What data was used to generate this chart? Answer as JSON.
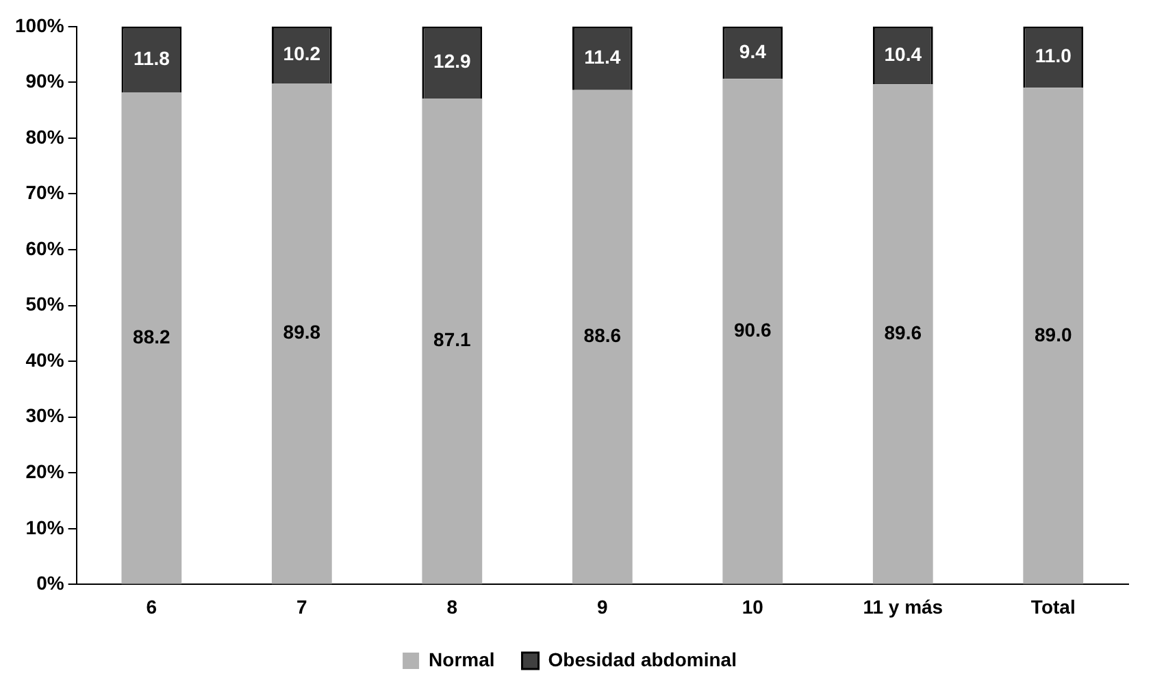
{
  "chart_data": {
    "type": "bar",
    "stacked": true,
    "categories": [
      "6",
      "7",
      "8",
      "9",
      "10",
      "11 y más",
      "Total"
    ],
    "series": [
      {
        "name": "Normal",
        "color": "#b3b3b3",
        "values": [
          88.2,
          89.8,
          87.1,
          88.6,
          90.6,
          89.6,
          89.0
        ],
        "value_labels": [
          "88.2",
          "89.8",
          "87.1",
          "88.6",
          "90.6",
          "89.6",
          "89.0"
        ]
      },
      {
        "name": "Obesidad abdominal",
        "color": "#404040",
        "values": [
          11.8,
          10.2,
          12.9,
          11.4,
          9.4,
          10.4,
          11.0
        ],
        "value_labels": [
          "11.8",
          "10.2",
          "12.9",
          "11.4",
          "9.4",
          "10.4",
          "11.0"
        ]
      }
    ],
    "ylim": [
      0,
      100
    ],
    "yticks": [
      {
        "value": 0,
        "label": "0%"
      },
      {
        "value": 10,
        "label": "10%"
      },
      {
        "value": 20,
        "label": "20%"
      },
      {
        "value": 30,
        "label": "30%"
      },
      {
        "value": 40,
        "label": "40%"
      },
      {
        "value": 50,
        "label": "50%"
      },
      {
        "value": 60,
        "label": "60%"
      },
      {
        "value": 70,
        "label": "70%"
      },
      {
        "value": 80,
        "label": "80%"
      },
      {
        "value": 90,
        "label": "90%"
      },
      {
        "value": 100,
        "label": "100%"
      }
    ],
    "grid": false,
    "legend": "bottom"
  }
}
